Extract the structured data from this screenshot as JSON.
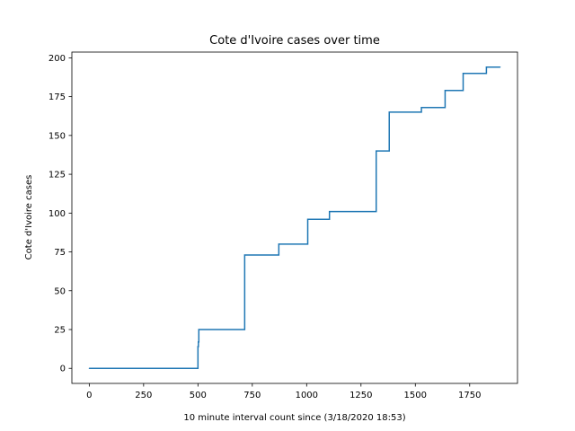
{
  "chart_data": {
    "type": "line",
    "title": "Cote d'Ivoire cases over time",
    "xlabel": "10 minute interval count since (3/18/2020 18:53)",
    "ylabel": "Cote d'Ivoire cases",
    "xlim": [
      -80,
      1970
    ],
    "ylim": [
      -9.7,
      203.7
    ],
    "xticks": [
      0,
      250,
      500,
      750,
      1000,
      1250,
      1500,
      1750
    ],
    "yticks": [
      0,
      25,
      50,
      75,
      100,
      125,
      150,
      175,
      200
    ],
    "grid": false,
    "line_style": "step",
    "series": [
      {
        "color": "#1f77b4",
        "x": [
          0,
          500,
          502,
          504,
          715,
          872,
          1005,
          1105,
          1320,
          1380,
          1528,
          1637,
          1720,
          1827,
          1890
        ],
        "y": [
          0,
          14,
          17,
          25,
          73,
          80,
          96,
          101,
          140,
          165,
          168,
          179,
          190,
          194,
          194
        ]
      }
    ]
  }
}
